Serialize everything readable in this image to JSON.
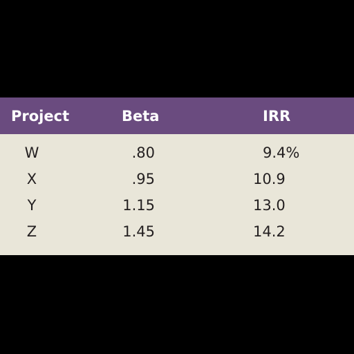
{
  "table": {
    "header": {
      "project": "Project",
      "beta": "Beta",
      "irr": "IRR"
    },
    "rows": [
      {
        "project": "W",
        "beta": ".80",
        "irr": "9.4%"
      },
      {
        "project": "X",
        "beta": ".95",
        "irr": "10.9"
      },
      {
        "project": "Y",
        "beta": "1.15",
        "irr": "13.0"
      },
      {
        "project": "Z",
        "beta": "1.45",
        "irr": "14.2"
      }
    ]
  },
  "colors": {
    "background": "#000000",
    "header_fill": "#6a4b7f",
    "header_text": "#ffffff",
    "body_fill": "#e9e6d9",
    "body_text": "#231f20"
  }
}
